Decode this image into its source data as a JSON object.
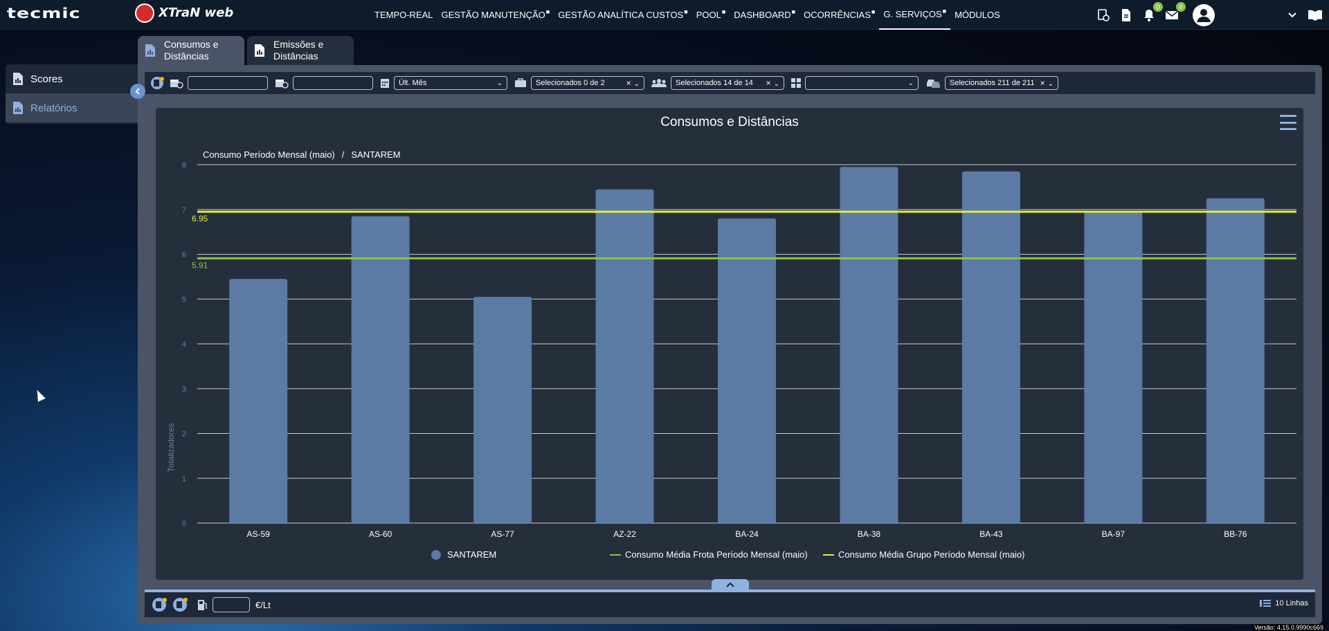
{
  "brand": {
    "logo": "tecmic",
    "product": "XTraN web"
  },
  "nav": {
    "items": [
      {
        "label": "TEMPO-REAL",
        "locked": false
      },
      {
        "label": "GESTÃO MANUTENÇÃO",
        "locked": true
      },
      {
        "label": "GESTÃO ANALÍTICA CUSTOS",
        "locked": true
      },
      {
        "label": "POOL",
        "locked": true
      },
      {
        "label": "DASHBOARD",
        "locked": true
      },
      {
        "label": "OCORRÊNCIAS",
        "locked": true
      },
      {
        "label": "G. SERVIÇOS",
        "locked": true,
        "active": true
      },
      {
        "label": "MÓDULOS",
        "locked": false
      }
    ],
    "notifications_count": "0",
    "messages_count": "0"
  },
  "sidebar": {
    "items": [
      {
        "label": "Scores",
        "icon": "report-icon"
      },
      {
        "label": "Relatórios",
        "icon": "report-icon",
        "active": true
      }
    ]
  },
  "tabs": [
    {
      "label": "Consumos e Distâncias",
      "active": true
    },
    {
      "label": "Emissões e Distâncias",
      "active": false
    }
  ],
  "filters": {
    "date_from": "",
    "date_to": "",
    "period": "Últ. Mês",
    "companies": "Selecionados 0 de 2",
    "groups": "Selecionados 14 de 14",
    "category": "",
    "vehicles": "Selecionados 211 de 211"
  },
  "chart": {
    "title": "Consumos e Distâncias",
    "breadcrumb_left": "Consumo Período Mensal (maio)",
    "breadcrumb_sep": "/",
    "breadcrumb_right": "SANTAREM",
    "ylabel": "Totalizadores",
    "fleet_avg_label": "5.91",
    "group_avg_label": "6.95"
  },
  "chart_data": {
    "type": "bar",
    "categories": [
      "AS-59",
      "AS-60",
      "AS-77",
      "AZ-22",
      "BA-24",
      "BA-38",
      "BA-43",
      "BA-97",
      "BB-76"
    ],
    "series": [
      {
        "name": "SANTAREM",
        "values": [
          5.45,
          6.85,
          5.05,
          7.45,
          6.8,
          7.95,
          7.85,
          6.95,
          7.25
        ],
        "color": "#5b7aa6"
      }
    ],
    "reference_lines": [
      {
        "name": "Consumo Média Frota Período Mensal (maio)",
        "value": 5.91,
        "color": "#8bc34a"
      },
      {
        "name": "Consumo Média Grupo Período Mensal (maio)",
        "value": 6.95,
        "color": "#e6ee3c"
      }
    ],
    "y_ticks": [
      "0",
      "1",
      "2",
      "3",
      "4",
      "5",
      "6",
      "7",
      "8"
    ],
    "ylabel": "Totalizadores",
    "ylim": [
      0,
      8
    ],
    "grid": true,
    "legend_position": "bottom"
  },
  "footer": {
    "price_value": "",
    "price_unit": "€/Lt",
    "rows_label": "10 Linhas"
  },
  "version": "Versão: 4.15.0.9990c669",
  "colors": {
    "accent": "#8fb1e0",
    "panel": "#4a5466",
    "chart_bg": "#252e3b",
    "bar": "#5b7aa6"
  }
}
